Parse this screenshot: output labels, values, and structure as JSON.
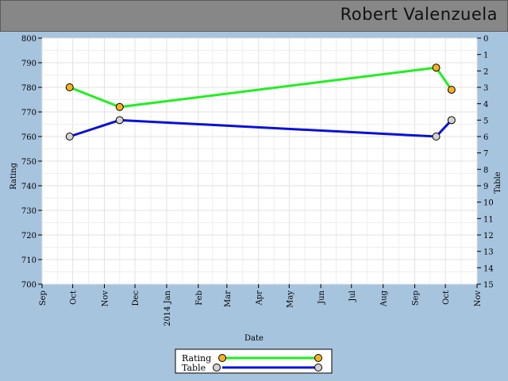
{
  "header": {
    "title": "Robert Valenzuela"
  },
  "chart_data": {
    "type": "line",
    "xlabel": "Date",
    "ylabel": "Rating",
    "y2label": "Table",
    "ylim": [
      700,
      800
    ],
    "y_ticks": [
      700,
      710,
      720,
      730,
      740,
      750,
      760,
      770,
      780,
      790,
      800
    ],
    "y2lim": [
      0,
      15
    ],
    "y2_ticks": [
      0,
      1,
      2,
      3,
      4,
      5,
      6,
      7,
      8,
      9,
      10,
      11,
      12,
      13,
      14,
      15
    ],
    "y2_reversed": true,
    "xlim": [
      "2013-09-01",
      "2014-11-01"
    ],
    "x_ticks": [
      {
        "date": "2013-09-01",
        "label": "Sep"
      },
      {
        "date": "2013-10-01",
        "label": "Oct"
      },
      {
        "date": "2013-11-01",
        "label": "Nov"
      },
      {
        "date": "2013-12-01",
        "label": "Dec"
      },
      {
        "date": "2014-01-01",
        "label": "2014 Jan"
      },
      {
        "date": "2014-02-01",
        "label": "Feb"
      },
      {
        "date": "2014-03-01",
        "label": "Mar"
      },
      {
        "date": "2014-04-01",
        "label": "Apr"
      },
      {
        "date": "2014-05-01",
        "label": "May"
      },
      {
        "date": "2014-06-01",
        "label": "Jun"
      },
      {
        "date": "2014-07-01",
        "label": "Jul"
      },
      {
        "date": "2014-08-01",
        "label": "Aug"
      },
      {
        "date": "2014-09-01",
        "label": "Sep"
      },
      {
        "date": "2014-10-01",
        "label": "Oct"
      },
      {
        "date": "2014-11-01",
        "label": "Nov"
      }
    ],
    "grid": true,
    "legend_position": "bottom-center",
    "series": [
      {
        "name": "Rating",
        "axis": "left",
        "line_color": "#22ee22",
        "marker_color": "#f5b21f",
        "points": [
          {
            "x": "2013-09-28",
            "y": 780
          },
          {
            "x": "2013-11-16",
            "y": 772
          },
          {
            "x": "2014-09-22",
            "y": 788
          },
          {
            "x": "2014-10-07",
            "y": 779
          }
        ]
      },
      {
        "name": "Table",
        "axis": "right",
        "line_color": "#0a10d8",
        "marker_color": "#d3d3d3",
        "points": [
          {
            "x": "2013-09-28",
            "y": 6
          },
          {
            "x": "2013-11-16",
            "y": 5
          },
          {
            "x": "2014-09-22",
            "y": 6
          },
          {
            "x": "2014-10-07",
            "y": 5
          }
        ]
      }
    ]
  }
}
